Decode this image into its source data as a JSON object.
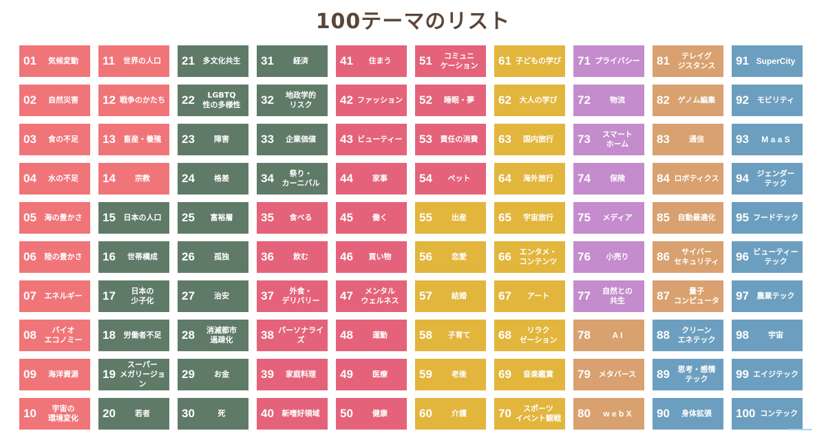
{
  "title": "100テーマのリスト",
  "colors": {
    "title": "#5a4638",
    "pink": "#f07579",
    "green": "#5f7b68",
    "rose": "#e4637a",
    "yellow": "#e2b53d",
    "purple": "#c48ccc",
    "tan": "#d8a16f",
    "blue": "#6c9fbf"
  },
  "themes": [
    {
      "num": "01",
      "label": "気候変動",
      "color": "#f07579"
    },
    {
      "num": "02",
      "label": "自然災害",
      "color": "#f07579"
    },
    {
      "num": "03",
      "label": "食の不足",
      "color": "#f07579"
    },
    {
      "num": "04",
      "label": "水の不足",
      "color": "#f07579"
    },
    {
      "num": "05",
      "label": "海の豊かさ",
      "color": "#f07579"
    },
    {
      "num": "06",
      "label": "陸の豊かさ",
      "color": "#f07579"
    },
    {
      "num": "07",
      "label": "エネルギー",
      "color": "#f07579"
    },
    {
      "num": "08",
      "label": "バイオ\nエコノミー",
      "color": "#f07579"
    },
    {
      "num": "09",
      "label": "海洋資源",
      "color": "#f07579"
    },
    {
      "num": "10",
      "label": "宇宙の\n環境変化",
      "color": "#f07579"
    },
    {
      "num": "11",
      "label": "世界の人口",
      "color": "#f07579"
    },
    {
      "num": "12",
      "label": "戦争のかたち",
      "color": "#f07579"
    },
    {
      "num": "13",
      "label": "畜産・養殖",
      "color": "#f07579"
    },
    {
      "num": "14",
      "label": "宗教",
      "color": "#f07579"
    },
    {
      "num": "15",
      "label": "日本の人口",
      "color": "#5f7b68"
    },
    {
      "num": "16",
      "label": "世帯構成",
      "color": "#5f7b68"
    },
    {
      "num": "17",
      "label": "日本の\n少子化",
      "color": "#5f7b68"
    },
    {
      "num": "18",
      "label": "労働者不足",
      "color": "#5f7b68"
    },
    {
      "num": "19",
      "label": "スーパー\nメガリージョン",
      "color": "#5f7b68"
    },
    {
      "num": "20",
      "label": "若者",
      "color": "#5f7b68"
    },
    {
      "num": "21",
      "label": "多文化共生",
      "color": "#5f7b68"
    },
    {
      "num": "22",
      "label": "LGBTQ\n性の多様性",
      "color": "#5f7b68"
    },
    {
      "num": "23",
      "label": "障害",
      "color": "#5f7b68"
    },
    {
      "num": "24",
      "label": "格差",
      "color": "#5f7b68"
    },
    {
      "num": "25",
      "label": "富裕層",
      "color": "#5f7b68"
    },
    {
      "num": "26",
      "label": "孤独",
      "color": "#5f7b68"
    },
    {
      "num": "27",
      "label": "治安",
      "color": "#5f7b68"
    },
    {
      "num": "28",
      "label": "消滅都市\n過疎化",
      "color": "#5f7b68"
    },
    {
      "num": "29",
      "label": "お金",
      "color": "#5f7b68"
    },
    {
      "num": "30",
      "label": "死",
      "color": "#5f7b68"
    },
    {
      "num": "31",
      "label": "経済",
      "color": "#5f7b68"
    },
    {
      "num": "32",
      "label": "地政学的\nリスク",
      "color": "#5f7b68"
    },
    {
      "num": "33",
      "label": "企業価値",
      "color": "#5f7b68"
    },
    {
      "num": "34",
      "label": "祭り・\nカーニバル",
      "color": "#5f7b68"
    },
    {
      "num": "35",
      "label": "食べる",
      "color": "#e4637a"
    },
    {
      "num": "36",
      "label": "飲む",
      "color": "#e4637a"
    },
    {
      "num": "37",
      "label": "外食・\nデリバリー",
      "color": "#e4637a"
    },
    {
      "num": "38",
      "label": "パーソナライズ",
      "color": "#e4637a"
    },
    {
      "num": "39",
      "label": "家庭料理",
      "color": "#e4637a"
    },
    {
      "num": "40",
      "label": "新嗜好領域",
      "color": "#e4637a"
    },
    {
      "num": "41",
      "label": "住まう",
      "color": "#e4637a"
    },
    {
      "num": "42",
      "label": "ファッション",
      "color": "#e4637a"
    },
    {
      "num": "43",
      "label": "ビューティー",
      "color": "#e4637a"
    },
    {
      "num": "44",
      "label": "家事",
      "color": "#e4637a"
    },
    {
      "num": "45",
      "label": "働く",
      "color": "#e4637a"
    },
    {
      "num": "46",
      "label": "買い物",
      "color": "#e4637a"
    },
    {
      "num": "47",
      "label": "メンタル\nウェルネス",
      "color": "#e4637a"
    },
    {
      "num": "48",
      "label": "運動",
      "color": "#e4637a"
    },
    {
      "num": "49",
      "label": "医療",
      "color": "#e4637a"
    },
    {
      "num": "50",
      "label": "健康",
      "color": "#e4637a"
    },
    {
      "num": "51",
      "label": "コミュニ\nケーション",
      "color": "#e4637a"
    },
    {
      "num": "52",
      "label": "睡眠・夢",
      "color": "#e4637a"
    },
    {
      "num": "53",
      "label": "責任の消費",
      "color": "#e4637a"
    },
    {
      "num": "54",
      "label": "ペット",
      "color": "#e4637a"
    },
    {
      "num": "55",
      "label": "出産",
      "color": "#e2b53d"
    },
    {
      "num": "56",
      "label": "恋愛",
      "color": "#e2b53d"
    },
    {
      "num": "57",
      "label": "結婚",
      "color": "#e2b53d"
    },
    {
      "num": "58",
      "label": "子育て",
      "color": "#e2b53d"
    },
    {
      "num": "59",
      "label": "老後",
      "color": "#e2b53d"
    },
    {
      "num": "60",
      "label": "介護",
      "color": "#e2b53d"
    },
    {
      "num": "61",
      "label": "子どもの学び",
      "color": "#e2b53d"
    },
    {
      "num": "62",
      "label": "大人の学び",
      "color": "#e2b53d"
    },
    {
      "num": "63",
      "label": "国内旅行",
      "color": "#e2b53d"
    },
    {
      "num": "64",
      "label": "海外旅行",
      "color": "#e2b53d"
    },
    {
      "num": "65",
      "label": "宇宙旅行",
      "color": "#e2b53d"
    },
    {
      "num": "66",
      "label": "エンタメ・\nコンテンツ",
      "color": "#e2b53d"
    },
    {
      "num": "67",
      "label": "アート",
      "color": "#e2b53d"
    },
    {
      "num": "68",
      "label": "リラク\nゼーション",
      "color": "#e2b53d"
    },
    {
      "num": "69",
      "label": "音楽鑑賞",
      "color": "#e2b53d"
    },
    {
      "num": "70",
      "label": "スポーツ\nイベント観戦",
      "color": "#e2b53d"
    },
    {
      "num": "71",
      "label": "プライバシー",
      "color": "#c48ccc"
    },
    {
      "num": "72",
      "label": "物流",
      "color": "#c48ccc"
    },
    {
      "num": "73",
      "label": "スマート\nホーム",
      "color": "#c48ccc"
    },
    {
      "num": "74",
      "label": "保険",
      "color": "#c48ccc"
    },
    {
      "num": "75",
      "label": "メディア",
      "color": "#c48ccc"
    },
    {
      "num": "76",
      "label": "小売り",
      "color": "#c48ccc"
    },
    {
      "num": "77",
      "label": "自然との\n共生",
      "color": "#c48ccc"
    },
    {
      "num": "78",
      "label": "A I",
      "color": "#d8a16f"
    },
    {
      "num": "79",
      "label": "メタバース",
      "color": "#d8a16f"
    },
    {
      "num": "80",
      "label": "w e b X",
      "color": "#d8a16f"
    },
    {
      "num": "81",
      "label": "テレイグ\nジスタンス",
      "color": "#d8a16f"
    },
    {
      "num": "82",
      "label": "ゲノム編集",
      "color": "#d8a16f"
    },
    {
      "num": "83",
      "label": "通信",
      "color": "#d8a16f"
    },
    {
      "num": "84",
      "label": "ロボティクス",
      "color": "#d8a16f"
    },
    {
      "num": "85",
      "label": "自動最適化",
      "color": "#d8a16f"
    },
    {
      "num": "86",
      "label": "サイバー\nセキュリティ",
      "color": "#d8a16f"
    },
    {
      "num": "87",
      "label": "量子\nコンピュータ",
      "color": "#d8a16f"
    },
    {
      "num": "88",
      "label": "クリーン\nエネテック",
      "color": "#6c9fbf"
    },
    {
      "num": "89",
      "label": "思考・感情\nテック",
      "color": "#6c9fbf"
    },
    {
      "num": "90",
      "label": "身体拡張",
      "color": "#6c9fbf"
    },
    {
      "num": "91",
      "label": "SuperCity",
      "color": "#6c9fbf"
    },
    {
      "num": "92",
      "label": "モビリティ",
      "color": "#6c9fbf"
    },
    {
      "num": "93",
      "label": "M a a S",
      "color": "#6c9fbf"
    },
    {
      "num": "94",
      "label": "ジェンダー\nテック",
      "color": "#6c9fbf"
    },
    {
      "num": "95",
      "label": "フードテック",
      "color": "#6c9fbf"
    },
    {
      "num": "96",
      "label": "ビューティー\nテック",
      "color": "#6c9fbf"
    },
    {
      "num": "97",
      "label": "農業テック",
      "color": "#6c9fbf"
    },
    {
      "num": "98",
      "label": "宇宙",
      "color": "#6c9fbf"
    },
    {
      "num": "99",
      "label": "エイジテック",
      "color": "#6c9fbf"
    },
    {
      "num": "100",
      "label": "コンテック",
      "color": "#6c9fbf"
    }
  ]
}
